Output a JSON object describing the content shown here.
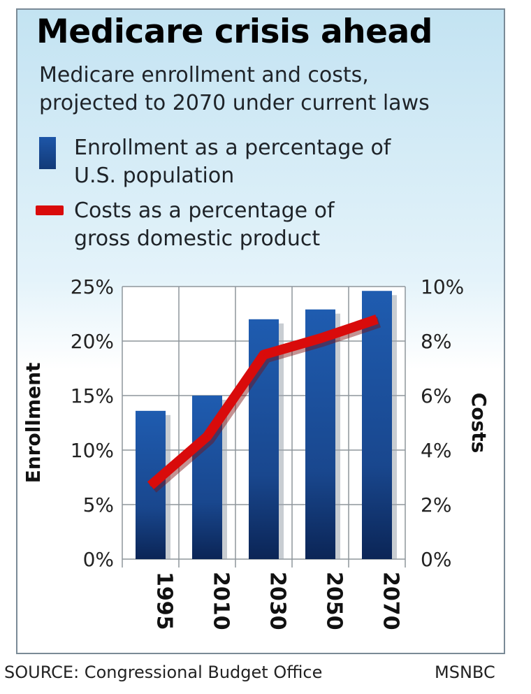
{
  "chart_data": {
    "type": "bar",
    "title": "Medicare crisis ahead",
    "subtitle": [
      "Medicare enrollment and costs,",
      "projected to 2070 under current laws"
    ],
    "categories": [
      "1995",
      "2010",
      "2030",
      "2050",
      "2070"
    ],
    "series": [
      {
        "name": "Enrollment as a percentage of U.S. population",
        "legend_lines": [
          "Enrollment as a percentage of",
          "U.S. population"
        ],
        "type": "bar",
        "axis": "left",
        "color": "#1b4f9c",
        "values": [
          13.6,
          15.0,
          22.0,
          22.9,
          24.6
        ]
      },
      {
        "name": "Costs as a percentage of gross domestic product",
        "legend_lines": [
          "Costs as a percentage of",
          "gross domestic product"
        ],
        "type": "line",
        "axis": "right",
        "color": "#d90b0b",
        "values": [
          2.7,
          4.5,
          7.5,
          8.1,
          8.8
        ]
      }
    ],
    "ylabel": "Enrollment",
    "y2label": "Costs",
    "ylim": [
      0,
      25
    ],
    "y2lim": [
      0,
      10
    ],
    "yticks": [
      "0%",
      "5%",
      "10%",
      "15%",
      "20%",
      "25%"
    ],
    "y2ticks": [
      "0%",
      "2%",
      "4%",
      "6%",
      "8%",
      "10%"
    ],
    "grid": true,
    "legend": "top-left"
  },
  "source": "SOURCE: Congressional Budget Office",
  "credit": "MSNBC"
}
